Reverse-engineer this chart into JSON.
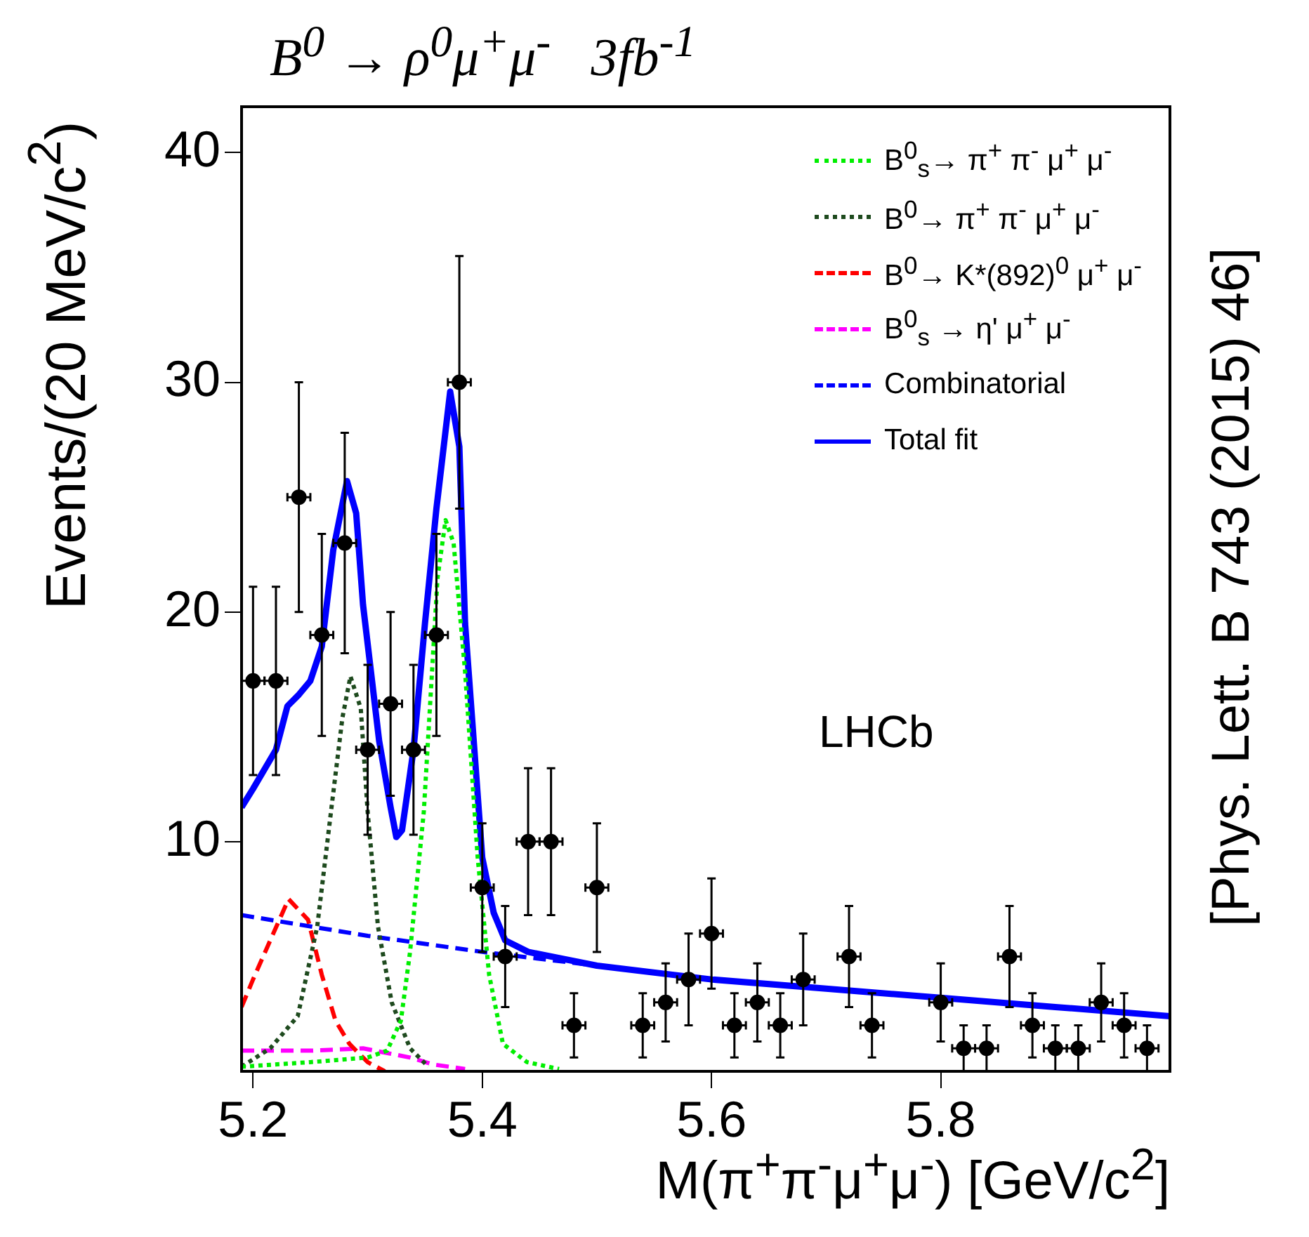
{
  "chart_data": {
    "type": "scatter",
    "title": "B$^{0}$ → ρ$^{0}$μ$^{+}$μ$^{-}$   3fb$^{-1}$",
    "xlabel": "M(π$^{+}$π$^{-}$μ$^{+}$μ$^{-}$) [GeV/c$^{2}$]",
    "ylabel": "Events/(20 MeV/c$^{2}$)",
    "annotations": [
      "LHCb",
      "[Phys. Lett. B 743 (2015) 46]"
    ],
    "xlim": [
      5.19,
      6.0
    ],
    "xticks": [
      5.2,
      5.4,
      5.6,
      5.8
    ],
    "ylim": [
      0,
      42
    ],
    "yticks": [
      10,
      20,
      30,
      40
    ],
    "grid": false,
    "legend": "top right",
    "series": [
      {
        "type": "scatter",
        "color": "#000000",
        "marker": "circle",
        "x": [
          5.2,
          5.22,
          5.24,
          5.26,
          5.28,
          5.3,
          5.32,
          5.34,
          5.36,
          5.38,
          5.4,
          5.42,
          5.44,
          5.46,
          5.48,
          5.5,
          5.52,
          5.54,
          5.56,
          5.58,
          5.6,
          5.62,
          5.64,
          5.66,
          5.68,
          5.7,
          5.72,
          5.74,
          5.76,
          5.78,
          5.8,
          5.82,
          5.84,
          5.86,
          5.88,
          5.9,
          5.92,
          5.94,
          5.96,
          5.98
        ],
        "values": [
          17,
          17,
          25,
          19,
          23,
          14,
          16,
          14,
          19,
          30,
          8,
          5,
          10,
          10,
          2,
          8,
          null,
          2,
          3,
          4,
          6,
          2,
          3,
          2,
          4,
          null,
          5,
          2,
          null,
          null,
          3,
          1,
          1,
          5,
          2,
          1,
          1,
          3,
          2,
          1
        ],
        "errors": [
          4.1,
          4.1,
          5,
          4.4,
          4.8,
          3.7,
          4,
          3.7,
          4.4,
          5.5,
          2.8,
          2.2,
          3.2,
          3.2,
          1.4,
          2.8,
          null,
          1.4,
          1.7,
          2,
          2.4,
          1.4,
          1.7,
          1.4,
          2,
          null,
          2.2,
          1.4,
          null,
          null,
          1.7,
          1,
          1,
          2.2,
          1.4,
          1,
          1,
          1.7,
          1.4,
          1
        ],
        "xerrors": [
          0.01,
          0.01,
          0.01,
          0.01,
          0.01,
          0.01,
          0.01,
          0.01,
          0.01,
          0.01,
          0.01,
          0.01,
          0.01,
          0.01,
          0.01,
          0.01,
          null,
          0.01,
          0.01,
          0.01,
          0.01,
          0.01,
          0.01,
          0.01,
          0.01,
          null,
          0.01,
          0.01,
          null,
          null,
          0.01,
          0.01,
          0.01,
          0.01,
          0.01,
          0.01,
          0.01,
          0.01,
          0.01,
          0.01
        ]
      },
      {
        "type": "line",
        "name": "B$^{0}$$_{s}$→ π$^{+}$ π$^{-}$ μ$^{+}$ μ$^{-}$",
        "color": "#00ee00",
        "marker": "none",
        "line_style": "dotted",
        "x": [
          5.19,
          5.25,
          5.3,
          5.317,
          5.329,
          5.337,
          5.349,
          5.361,
          5.368,
          5.375,
          5.385,
          5.396,
          5.406,
          5.418,
          5.439,
          5.467
        ],
        "values": [
          0.2,
          0.4,
          0.6,
          0.9,
          2.2,
          5.2,
          11.3,
          21.5,
          24,
          23,
          17.4,
          9.3,
          4.2,
          1.2,
          0.4,
          0.1
        ]
      },
      {
        "type": "line",
        "name": "B$^{0}$→ π$^{+}$ π$^{-}$ μ$^{+}$ μ$^{-}$",
        "color": "#1e4a1e",
        "marker": "none",
        "line_style": "dotted",
        "x": [
          5.19,
          5.215,
          5.239,
          5.256,
          5.268,
          5.278,
          5.285,
          5.294,
          5.3,
          5.309,
          5.321,
          5.337,
          5.353
        ],
        "values": [
          0.2,
          1,
          2.4,
          6.3,
          11.3,
          15.4,
          17.2,
          15.8,
          11.3,
          6.3,
          3,
          1,
          0.2
        ]
      },
      {
        "type": "line",
        "name": "B$^{0}$→ K*(892)$^{0}$ μ$^{+}$ μ$^{-}$",
        "color": "#ff0000",
        "marker": "none",
        "line_style": "dashed",
        "x": [
          5.19,
          5.2,
          5.215,
          5.231,
          5.248,
          5.26,
          5.272,
          5.284,
          5.3,
          5.315
        ],
        "values": [
          2.8,
          4,
          5.7,
          7.5,
          6.6,
          4.2,
          2.2,
          1.2,
          0.4,
          0
        ]
      },
      {
        "type": "line",
        "name": "B$^{0}$$_{s}$ → η' μ$^{+}$ μ$^{-}$",
        "color": "#ff00ff",
        "marker": "none",
        "line_style": "dashed",
        "x": [
          5.19,
          5.25,
          5.296,
          5.337,
          5.357,
          5.385
        ],
        "values": [
          0.9,
          0.9,
          1,
          0.6,
          0.3,
          0.1
        ]
      },
      {
        "type": "line",
        "name": "Combinatorial",
        "color": "#0000ff",
        "marker": "none",
        "line_style": "dashed",
        "x": [
          5.19,
          5.3,
          5.4,
          5.5,
          5.6,
          5.7,
          5.8,
          5.9,
          6.0
        ],
        "values": [
          6.8,
          5.9,
          5.2,
          4.6,
          4,
          3.6,
          3.2,
          2.8,
          2.4
        ]
      },
      {
        "type": "line",
        "name": "Total fit",
        "color": "#0000ff",
        "marker": "none",
        "line_style": "solid",
        "x": [
          5.19,
          5.2,
          5.22,
          5.23,
          5.24,
          5.25,
          5.26,
          5.27,
          5.282,
          5.29,
          5.296,
          5.31,
          5.32,
          5.325,
          5.33,
          5.34,
          5.35,
          5.36,
          5.372,
          5.38,
          5.385,
          5.394,
          5.4,
          5.41,
          5.42,
          5.44,
          5.5,
          5.6,
          5.7,
          5.8,
          5.9,
          6.0
        ],
        "values": [
          11.5,
          12.3,
          14,
          15.9,
          16.4,
          17,
          18.5,
          22.7,
          25.7,
          24.3,
          20.3,
          14.4,
          11.5,
          10.2,
          10.5,
          14,
          19.5,
          24.5,
          29.6,
          27.2,
          19.5,
          13.4,
          9.3,
          6.9,
          5.7,
          5.2,
          4.6,
          4,
          3.6,
          3.2,
          2.8,
          2.4
        ]
      }
    ]
  }
}
